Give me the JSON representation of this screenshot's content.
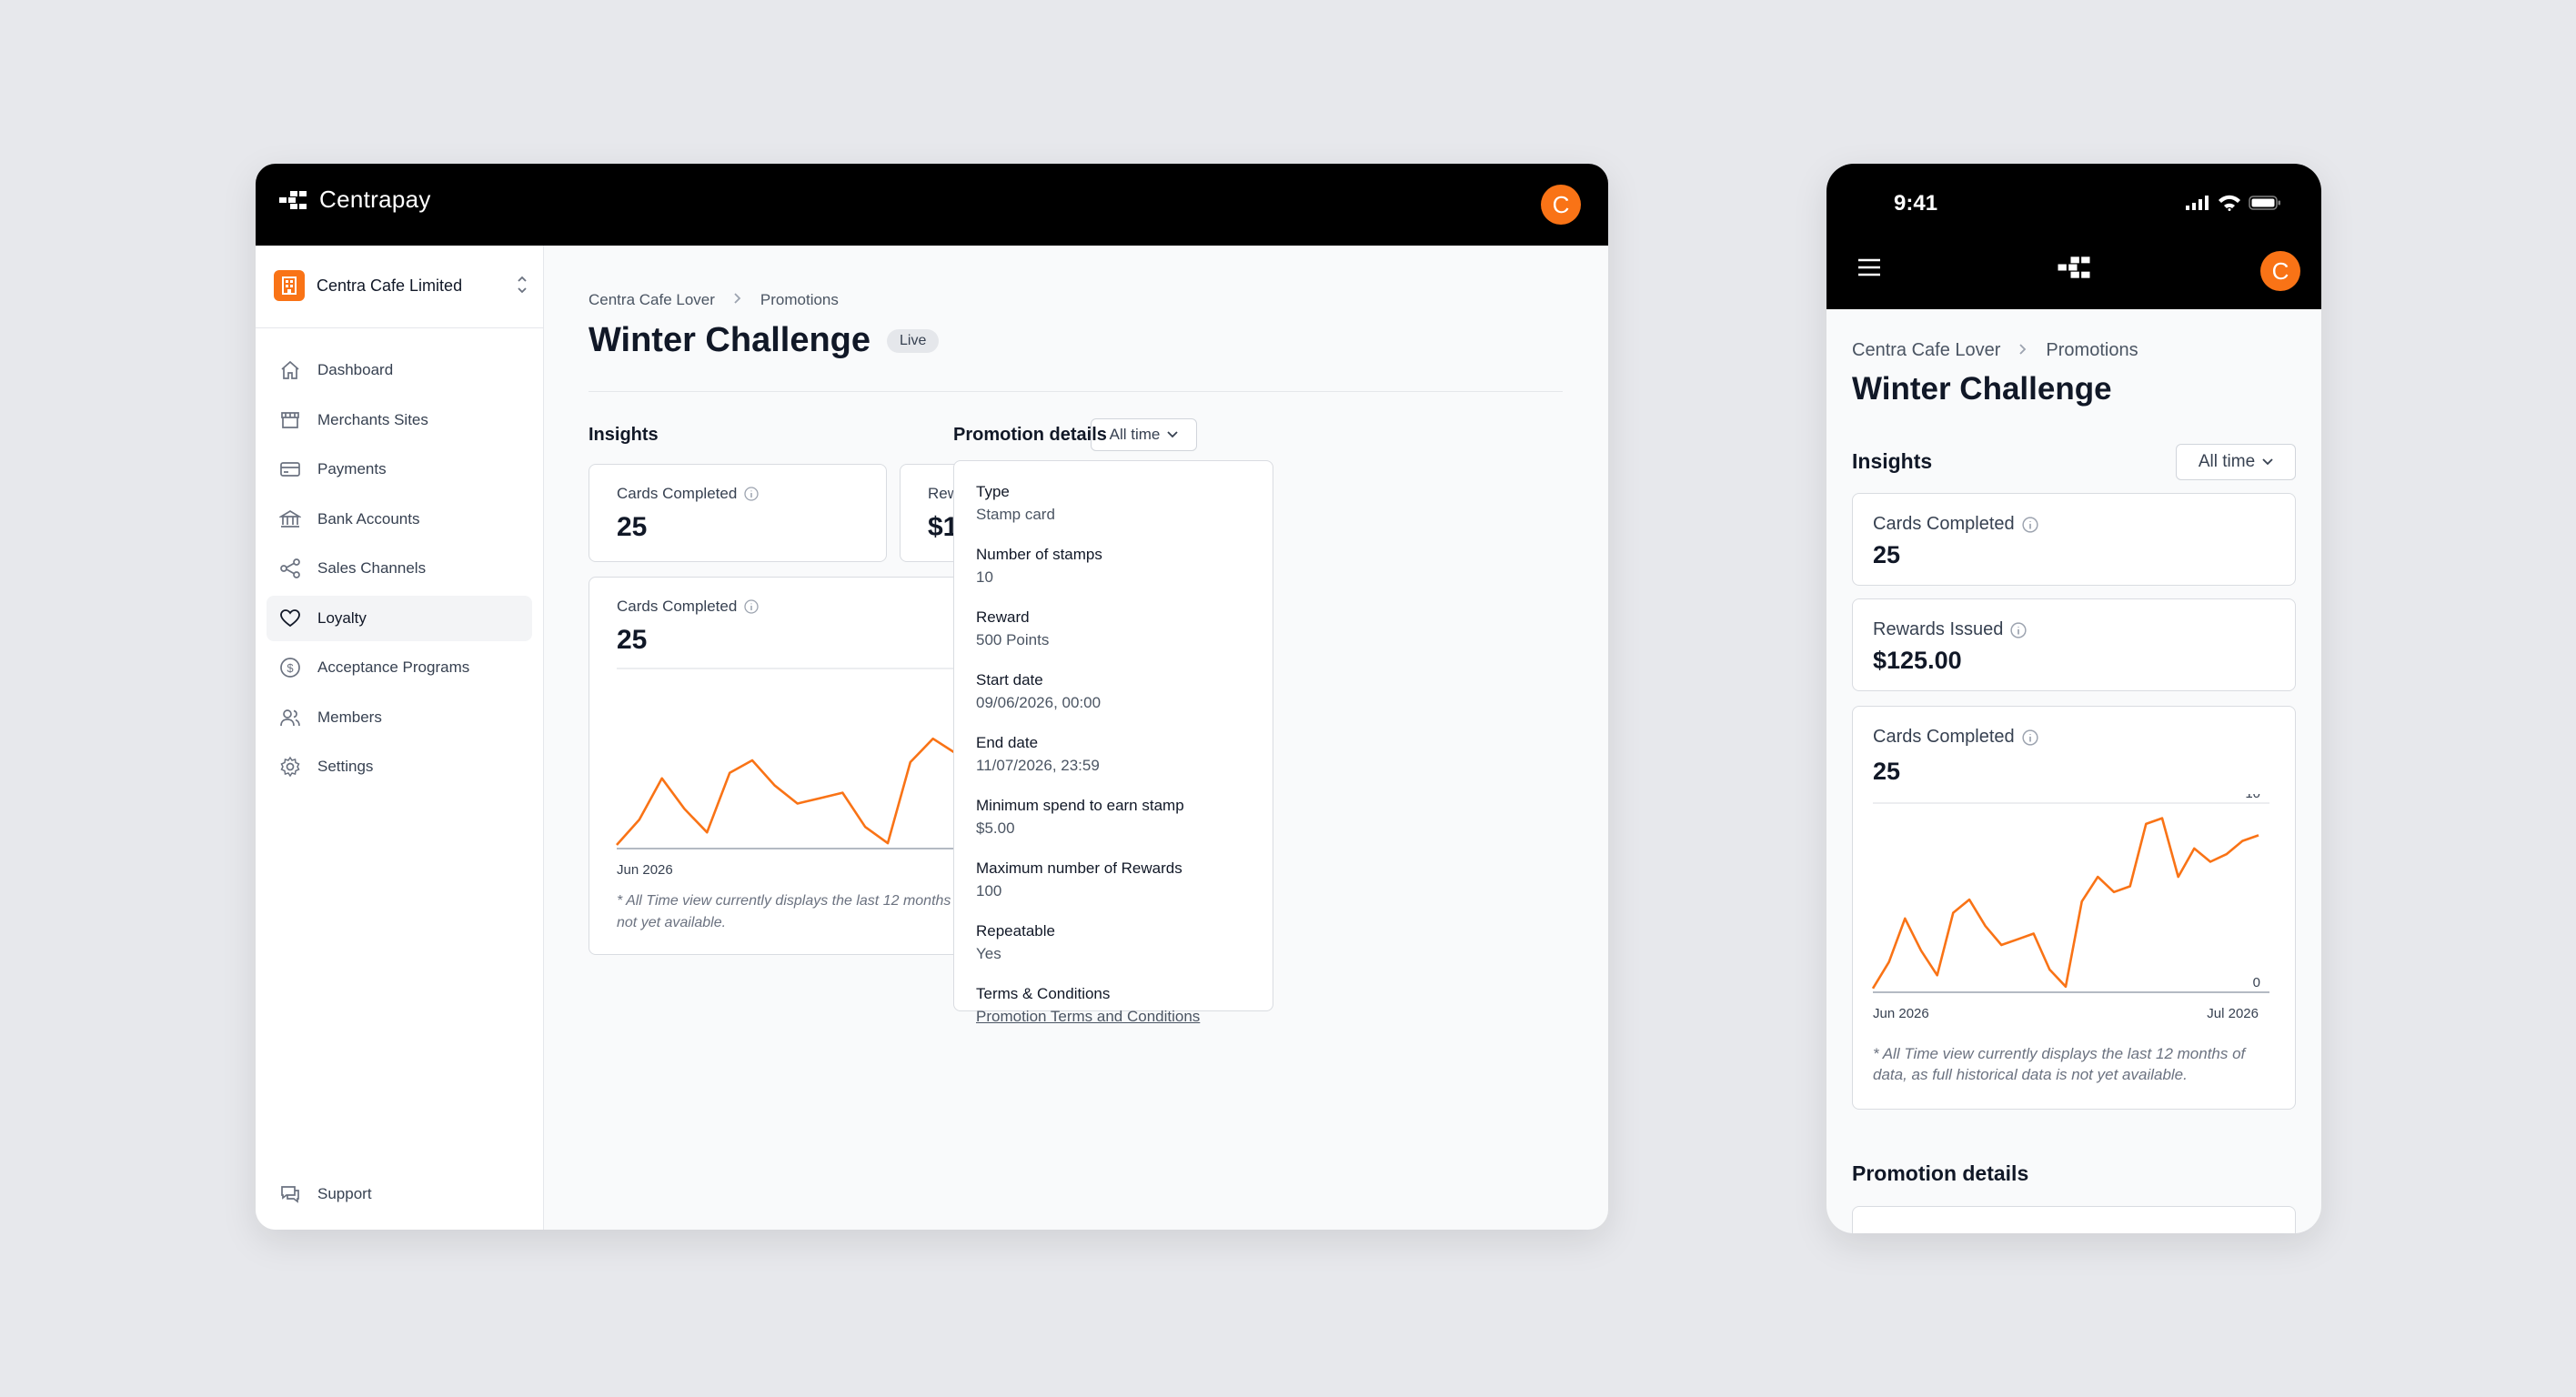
{
  "app": {
    "brand": "Centrapay",
    "user_initial": "C",
    "accent": "#f97316"
  },
  "org": {
    "name": "Centra Cafe Limited"
  },
  "sidebar": {
    "items": [
      {
        "label": "Dashboard",
        "icon": "home-icon"
      },
      {
        "label": "Merchants Sites",
        "icon": "store-icon"
      },
      {
        "label": "Payments",
        "icon": "credit-card-icon"
      },
      {
        "label": "Bank Accounts",
        "icon": "bank-icon"
      },
      {
        "label": "Sales Channels",
        "icon": "share-icon"
      },
      {
        "label": "Loyalty",
        "icon": "heart-icon",
        "active": true
      },
      {
        "label": "Acceptance Programs",
        "icon": "dollar-circle-icon"
      },
      {
        "label": "Members",
        "icon": "users-icon"
      },
      {
        "label": "Settings",
        "icon": "gear-icon"
      }
    ],
    "support": "Support"
  },
  "page": {
    "breadcrumb": [
      "Centra Cafe Lover",
      "Promotions"
    ],
    "title": "Winter Challenge",
    "status": "Live"
  },
  "insights": {
    "title": "Insights",
    "range": "All time",
    "cards_completed_label": "Cards Completed",
    "cards_completed": "25",
    "rewards_issued_label": "Rewards Issued",
    "rewards_issued": "$125.00",
    "chart_label": "Cards Completed",
    "chart_total": "25",
    "note": "* All Time view currently displays the last 12 months of data, as full historical data is not yet available."
  },
  "promotion": {
    "title": "Promotion details",
    "details": [
      {
        "label": "Type",
        "value": "Stamp card"
      },
      {
        "label": "Number of stamps",
        "value": "10"
      },
      {
        "label": "Reward",
        "value": "500 Points"
      },
      {
        "label": "Start date",
        "value": "09/06/2026, 00:00"
      },
      {
        "label": "End date",
        "value": "11/07/2026, 23:59"
      },
      {
        "label": "Minimum spend to earn stamp",
        "value": "$5.00"
      },
      {
        "label": "Maximum number of Rewards",
        "value": "100"
      },
      {
        "label": "Repeatable",
        "value": "Yes"
      },
      {
        "label": "Terms & Conditions",
        "value": "Promotion Terms and Conditions",
        "link": true
      }
    ]
  },
  "phone": {
    "time": "9:41"
  },
  "chart_data": {
    "type": "line",
    "x_labels": [
      "Jun 2026",
      "Jul 2026"
    ],
    "ylim": [
      0,
      10
    ],
    "y_ticks": [
      "0",
      "10"
    ],
    "color": "#f97316",
    "series": [
      {
        "values": [
          0.2,
          1.6,
          3.9,
          2.2,
          0.9,
          4.2,
          4.9,
          3.5,
          2.5,
          2.8,
          3.1,
          1.2,
          0.3,
          4.8,
          6.1,
          5.3,
          5.6,
          8.9,
          9.2,
          6.1,
          7.6,
          6.9,
          7.3,
          8.0,
          8.3
        ]
      }
    ]
  }
}
